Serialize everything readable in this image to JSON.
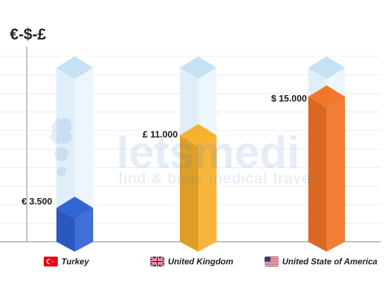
{
  "chart_data": {
    "type": "bar",
    "ylabel": "€-$-£",
    "categories": [
      "Turkey",
      "United Kingdom",
      "United State of America"
    ],
    "values": [
      3500,
      11000,
      15000
    ],
    "value_labels": [
      "€ 3.500",
      "£ 11.000",
      "$ 15.000"
    ],
    "ylim": [
      0,
      18000
    ],
    "grid": true,
    "legend": "none",
    "bar_colors": [
      "#2e62d3",
      "#f6b02a",
      "#f07428"
    ],
    "track_color": "#dcecf7"
  },
  "flags": [
    "turkey-flag-icon",
    "uk-flag-icon",
    "usa-flag-icon"
  ],
  "watermark": {
    "brand": "letsmedi",
    "tagline": "find & book medical travel"
  }
}
